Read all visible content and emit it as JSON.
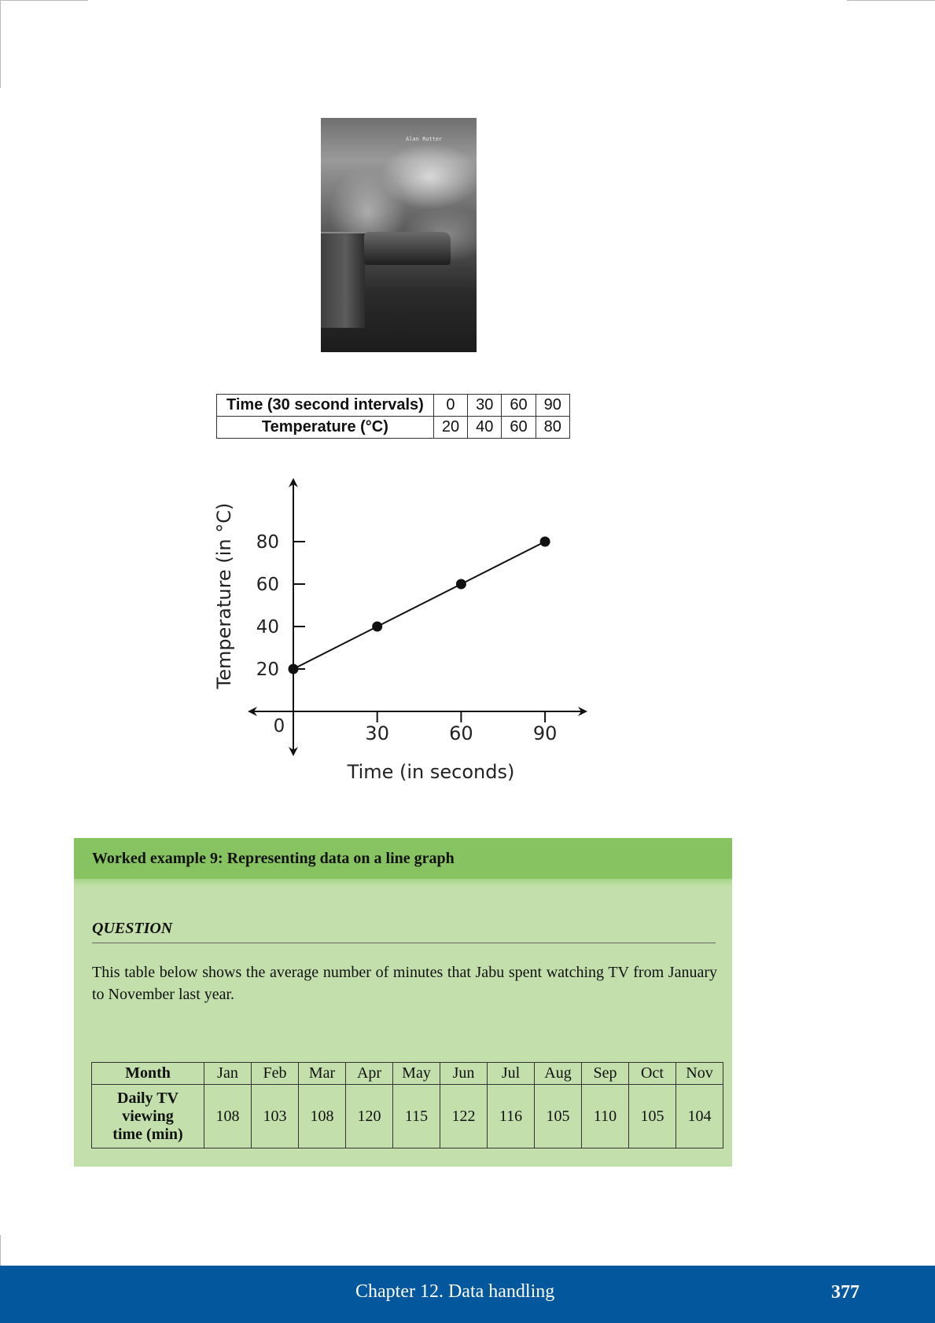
{
  "photo": {
    "credit": "Alan Rutter"
  },
  "temp_table": {
    "row1": {
      "label": "Time (30 second intervals)",
      "values": [
        "0",
        "30",
        "60",
        "90"
      ]
    },
    "row2": {
      "label": "Temperature (°C)",
      "values": [
        "20",
        "40",
        "60",
        "80"
      ]
    }
  },
  "chart_data": {
    "type": "line",
    "xlabel": "Time (in seconds)",
    "ylabel": "Temperature (in °C)",
    "x_ticks": [
      "30",
      "60",
      "90"
    ],
    "y_ticks": [
      "20",
      "40",
      "60",
      "80"
    ],
    "origin_label": "0",
    "points": [
      {
        "x": 0,
        "y": 20
      },
      {
        "x": 30,
        "y": 40
      },
      {
        "x": 60,
        "y": 60
      },
      {
        "x": 90,
        "y": 80
      }
    ]
  },
  "worked_example": {
    "title": "Worked example 9:  Representing data on a line graph",
    "question_label": "QUESTION",
    "question_text": "This table below shows the average number of minutes that Jabu spent watching TV from January to November last year.",
    "table": {
      "row1_header": "Month",
      "months": [
        "Jan",
        "Feb",
        "Mar",
        "Apr",
        "May",
        "Jun",
        "Jul",
        "Aug",
        "Sep",
        "Oct",
        "Nov"
      ],
      "row2_header": [
        "Daily TV",
        "viewing",
        "time (min)"
      ],
      "minutes": [
        "108",
        "103",
        "108",
        "120",
        "115",
        "122",
        "116",
        "105",
        "110",
        "105",
        "104"
      ]
    }
  },
  "footer": {
    "chapter": "Chapter 12.   Data handling",
    "page": "377"
  }
}
